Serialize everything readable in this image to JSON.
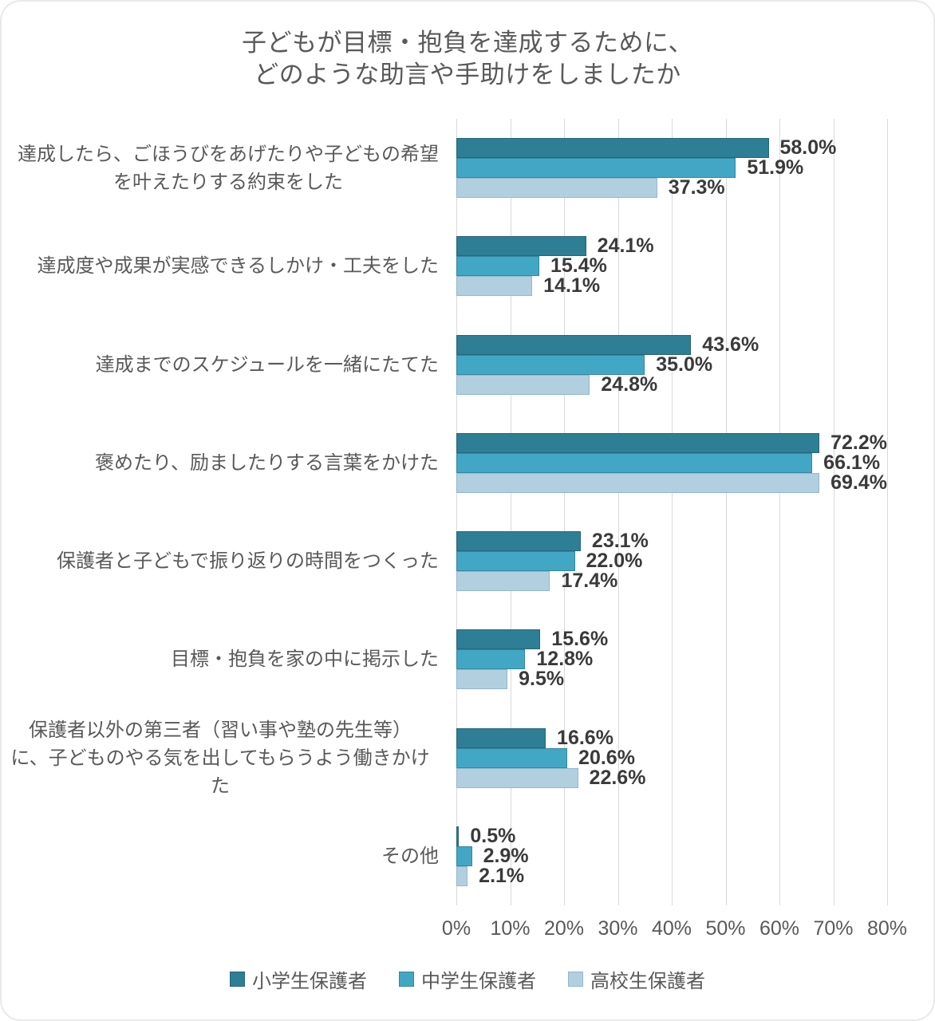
{
  "frame": {
    "title_lines": [
      "子どもが目標・抱負を達成するために、",
      "どのような助言や手助けをしましたか"
    ]
  },
  "chart_data": {
    "type": "bar",
    "orientation": "horizontal",
    "title": "子どもが目標・抱負を達成するために、どのような助言や手助けをしましたか",
    "categories": [
      "達成したら、ごほうびをあげたりや子どもの希望を叶えたりする約束をした",
      "達成度や成果が実感できるしかけ・工夫をした",
      "達成までのスケジュールを一緒にたてた",
      "褒めたり、励ましたりする言葉をかけた",
      "保護者と子どもで振り返りの時間をつくった",
      "目標・抱負を家の中に掲示した",
      "保護者以外の第三者（習い事や塾の先生等）に、子どものやる気を出してもらうよう働きかけた",
      "その他"
    ],
    "category_label_lines": [
      [
        "達成したら、ごほうびをあげたりや子どもの希望",
        "を叶えたりする約束をした"
      ],
      [
        "達成度や成果が実感できるしかけ・工夫をした"
      ],
      [
        "達成までのスケジュールを一緒にたてた"
      ],
      [
        "褒めたり、励ましたりする言葉をかけた"
      ],
      [
        "保護者と子どもで振り返りの時間をつくった"
      ],
      [
        "目標・抱負を家の中に掲示した"
      ],
      [
        "保護者以外の第三者（習い事や塾の先生等）",
        "に、子どものやる気を出してもらうよう働きかけた"
      ],
      [
        "その他"
      ]
    ],
    "series": [
      {
        "name": "小学生保護者",
        "color": "#2e7e95",
        "border_color": "#26657a",
        "values": [
          58.0,
          24.1,
          43.6,
          72.2,
          23.1,
          15.6,
          16.6,
          0.5
        ]
      },
      {
        "name": "中学生保護者",
        "color": "#42a7c4",
        "border_color": "#35869e",
        "values": [
          51.9,
          15.4,
          35.0,
          66.1,
          22.0,
          12.8,
          20.6,
          2.9
        ]
      },
      {
        "name": "高校生保護者",
        "color": "#b2cfe0",
        "border_color": "#93b7cd",
        "values": [
          37.3,
          14.1,
          24.8,
          69.4,
          17.4,
          9.5,
          22.6,
          2.1
        ]
      }
    ],
    "value_suffix": "%",
    "value_decimals": 1,
    "xlim": [
      0,
      80
    ],
    "x_ticks": [
      "0%",
      "10%",
      "20%",
      "30%",
      "40%",
      "50%",
      "60%",
      "70%",
      "80%"
    ],
    "grid": true,
    "gridline_color": "#d9d9d9",
    "legend_position": "bottom"
  }
}
